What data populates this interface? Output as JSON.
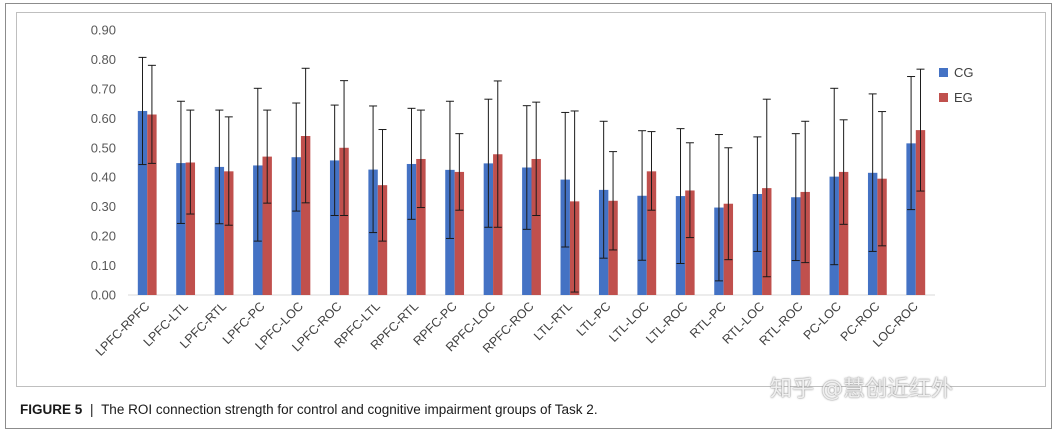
{
  "chart_data": {
    "type": "bar",
    "title": "",
    "xlabel": "",
    "ylabel": "",
    "ylim": [
      0,
      0.9
    ],
    "ytick_labels": [
      "0.00",
      "0.10",
      "0.20",
      "0.30",
      "0.40",
      "0.50",
      "0.60",
      "0.70",
      "0.80",
      "0.90"
    ],
    "categories": [
      "LPFC-RPFC",
      "LPFC-LTL",
      "LPFC-RTL",
      "LPFC-PC",
      "LPFC-LOC",
      "LPFC-ROC",
      "RPFC-LTL",
      "RPFC-RTL",
      "RPFC-PC",
      "RPFC-LOC",
      "RPFC-ROC",
      "LTL-RTL",
      "LTL-PC",
      "LTL-LOC",
      "LTL-ROC",
      "RTL-PC",
      "RTL-LOC",
      "RTL-ROC",
      "PC-LOC",
      "PC-ROC",
      "LOC-ROC"
    ],
    "series": [
      {
        "name": "CG",
        "color": "#4472c4",
        "values": [
          0.625,
          0.448,
          0.435,
          0.44,
          0.468,
          0.457,
          0.426,
          0.445,
          0.425,
          0.447,
          0.433,
          0.392,
          0.357,
          0.337,
          0.336,
          0.297,
          0.343,
          0.332,
          0.402,
          0.415,
          0.515
        ],
        "err_upper": [
          0.807,
          0.658,
          0.628,
          0.702,
          0.652,
          0.645,
          0.642,
          0.634,
          0.658,
          0.665,
          0.643,
          0.62,
          0.59,
          0.558,
          0.565,
          0.545,
          0.537,
          0.548,
          0.702,
          0.683,
          0.742
        ],
        "err_lower": [
          0.443,
          0.243,
          0.242,
          0.183,
          0.285,
          0.27,
          0.212,
          0.257,
          0.192,
          0.23,
          0.223,
          0.163,
          0.125,
          0.118,
          0.107,
          0.048,
          0.148,
          0.117,
          0.103,
          0.148,
          0.29
        ]
      },
      {
        "name": "EG",
        "color": "#c0504d",
        "values": [
          0.613,
          0.45,
          0.42,
          0.47,
          0.54,
          0.5,
          0.373,
          0.462,
          0.418,
          0.478,
          0.462,
          0.318,
          0.32,
          0.42,
          0.355,
          0.31,
          0.363,
          0.35,
          0.418,
          0.395,
          0.56
        ],
        "err_upper": [
          0.78,
          0.628,
          0.605,
          0.628,
          0.77,
          0.728,
          0.562,
          0.628,
          0.548,
          0.727,
          0.655,
          0.625,
          0.487,
          0.555,
          0.517,
          0.5,
          0.665,
          0.59,
          0.595,
          0.623,
          0.767
        ],
        "err_lower": [
          0.447,
          0.275,
          0.237,
          0.312,
          0.313,
          0.27,
          0.183,
          0.297,
          0.288,
          0.23,
          0.27,
          0.01,
          0.153,
          0.288,
          0.195,
          0.12,
          0.062,
          0.11,
          0.24,
          0.167,
          0.353
        ]
      }
    ],
    "legend_position": "right",
    "grid": false
  },
  "caption": {
    "label": "FIGURE 5",
    "separator": "|",
    "text": "The ROI connection strength for control and cognitive impairment groups of Task 2."
  },
  "watermark": "知乎 @慧创近红外"
}
